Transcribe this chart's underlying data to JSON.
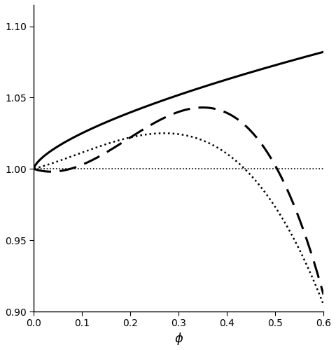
{
  "title": "",
  "xlabel": "ϕ",
  "ylabel": "",
  "xlim": [
    0,
    0.6
  ],
  "ylim": [
    0.9,
    1.115
  ],
  "yticks": [
    0.9,
    0.95,
    1.0,
    1.05,
    1.1
  ],
  "xticks": [
    0,
    0.1,
    0.2,
    0.3,
    0.4,
    0.5,
    0.6
  ],
  "background_color": "#ffffff",
  "line_color": "#000000",
  "figsize": [
    4.8,
    5.0
  ],
  "dpi": 100,
  "solid_coeffs": [
    0.115,
    0.662
  ],
  "dashed_coeffs": [
    -0.1104,
    1.685,
    -2.909
  ],
  "dotted_coeffs": [
    0.09305,
    0.34,
    -1.265
  ]
}
